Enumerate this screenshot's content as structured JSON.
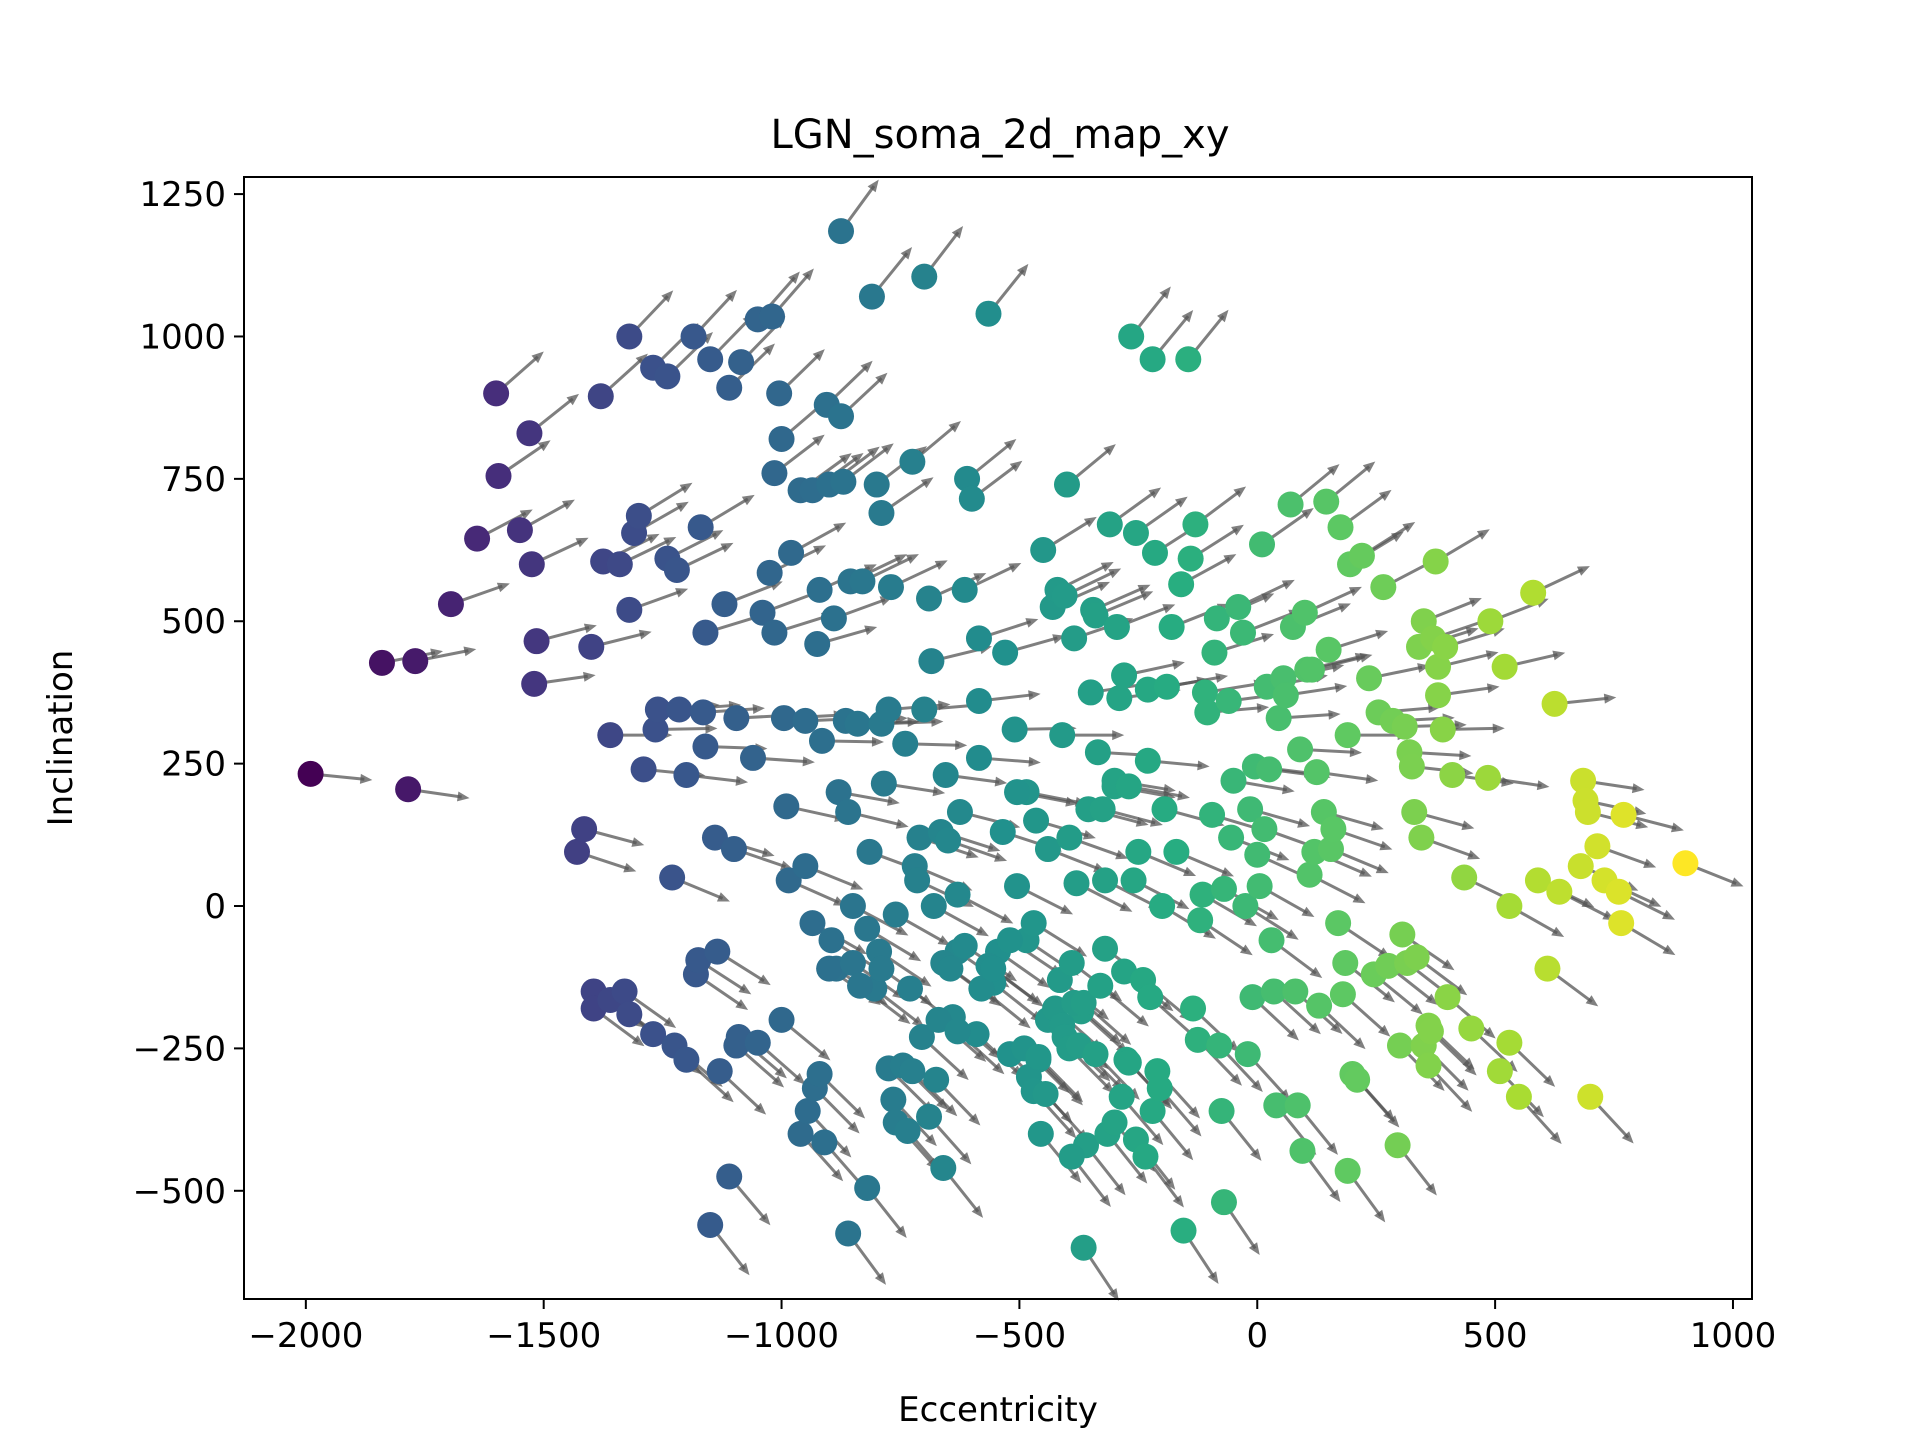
{
  "chart_data": {
    "type": "scatter",
    "title": "LGN_soma_2d_map_xy",
    "xlabel": "Eccentricity",
    "ylabel": "Inclination",
    "xlim": [
      -2130,
      1040
    ],
    "ylim": [
      -690,
      1280
    ],
    "xticks": [
      -2000,
      -1500,
      -1000,
      -500,
      0,
      500,
      1000
    ],
    "yticks": [
      -500,
      -250,
      0,
      250,
      500,
      750,
      1000,
      1250
    ],
    "xtick_labels": [
      "−2000",
      "−1500",
      "−1000",
      "−500",
      "0",
      "500",
      "1000"
    ],
    "ytick_labels": [
      "−500",
      "−250",
      "0",
      "250",
      "500",
      "750",
      "1000",
      "1250"
    ],
    "colormap": "viridis",
    "color_by": "x",
    "marker_color_range": [
      "#440154",
      "#fde725"
    ],
    "arrow_color": "#555555",
    "grid": false,
    "points": [
      [
        -1990,
        232
      ],
      [
        -1785,
        205
      ],
      [
        -1840,
        427
      ],
      [
        -1770,
        430
      ],
      [
        -1695,
        530
      ],
      [
        -1640,
        645
      ],
      [
        -1595,
        755
      ],
      [
        -1600,
        900
      ],
      [
        -1550,
        660
      ],
      [
        -1530,
        830
      ],
      [
        -1525,
        600
      ],
      [
        -1515,
        465
      ],
      [
        -1520,
        390
      ],
      [
        -1430,
        95
      ],
      [
        -1415,
        135
      ],
      [
        -1400,
        455
      ],
      [
        -1380,
        895
      ],
      [
        -1375,
        605
      ],
      [
        -1360,
        300
      ],
      [
        -1340,
        600
      ],
      [
        -1320,
        520
      ],
      [
        -1320,
        1000
      ],
      [
        -1310,
        655
      ],
      [
        -1300,
        685
      ],
      [
        -1290,
        240
      ],
      [
        -1270,
        945
      ],
      [
        -1265,
        310
      ],
      [
        -1260,
        345
      ],
      [
        -1240,
        610
      ],
      [
        -1240,
        930
      ],
      [
        -1230,
        50
      ],
      [
        -1220,
        590
      ],
      [
        -1215,
        345
      ],
      [
        -1200,
        230
      ],
      [
        -1185,
        1000
      ],
      [
        -1170,
        665
      ],
      [
        -1165,
        340
      ],
      [
        -1160,
        480
      ],
      [
        -1160,
        280
      ],
      [
        -1150,
        960
      ],
      [
        -1140,
        120
      ],
      [
        -1120,
        530
      ],
      [
        -1110,
        910
      ],
      [
        -1100,
        100
      ],
      [
        -1095,
        -245
      ],
      [
        -1095,
        330
      ],
      [
        -1085,
        955
      ],
      [
        -1060,
        260
      ],
      [
        -1050,
        1030
      ],
      [
        -1040,
        515
      ],
      [
        -1025,
        585
      ],
      [
        -1020,
        1035
      ],
      [
        -1015,
        760
      ],
      [
        -1015,
        480
      ],
      [
        -1005,
        900
      ],
      [
        -1000,
        820
      ],
      [
        -995,
        330
      ],
      [
        -990,
        175
      ],
      [
        -985,
        45
      ],
      [
        -980,
        620
      ],
      [
        -960,
        730
      ],
      [
        -950,
        325
      ],
      [
        -950,
        70
      ],
      [
        -935,
        730
      ],
      [
        -935,
        -30
      ],
      [
        -925,
        460
      ],
      [
        -920,
        555
      ],
      [
        -915,
        290
      ],
      [
        -910,
        -415
      ],
      [
        -905,
        880
      ],
      [
        -900,
        740
      ],
      [
        -895,
        -60
      ],
      [
        -890,
        505
      ],
      [
        -885,
        -110
      ],
      [
        -880,
        200
      ],
      [
        -875,
        860
      ],
      [
        -870,
        745
      ],
      [
        -865,
        325
      ],
      [
        -860,
        165
      ],
      [
        -855,
        570
      ],
      [
        -850,
        0
      ],
      [
        -840,
        320
      ],
      [
        -830,
        570
      ],
      [
        -820,
        -495
      ],
      [
        -815,
        95
      ],
      [
        -810,
        1070
      ],
      [
        -805,
        -145
      ],
      [
        -800,
        740
      ],
      [
        -790,
        690
      ],
      [
        -790,
        320
      ],
      [
        -785,
        215
      ],
      [
        -775,
        345
      ],
      [
        -770,
        560
      ],
      [
        -760,
        -15
      ],
      [
        -740,
        285
      ],
      [
        -730,
        -145
      ],
      [
        -725,
        780
      ],
      [
        -720,
        70
      ],
      [
        -715,
        45
      ],
      [
        -710,
        120
      ],
      [
        -700,
        1105
      ],
      [
        -690,
        540
      ],
      [
        -685,
        430
      ],
      [
        -680,
        0
      ],
      [
        -675,
        -305
      ],
      [
        -665,
        130
      ],
      [
        -660,
        -460
      ],
      [
        -655,
        230
      ],
      [
        -650,
        115
      ],
      [
        -640,
        -195
      ],
      [
        -630,
        20
      ],
      [
        -625,
        165
      ],
      [
        -615,
        555
      ],
      [
        -610,
        750
      ],
      [
        -600,
        715
      ],
      [
        -590,
        -225
      ],
      [
        -585,
        470
      ],
      [
        -585,
        260
      ],
      [
        -585,
        360
      ],
      [
        -565,
        1040
      ],
      [
        -555,
        -135
      ],
      [
        -545,
        -80
      ],
      [
        -535,
        130
      ],
      [
        -530,
        445
      ],
      [
        -520,
        -260
      ],
      [
        -510,
        310
      ],
      [
        -505,
        35
      ],
      [
        -485,
        200
      ],
      [
        -485,
        -60
      ],
      [
        -470,
        -30
      ],
      [
        -465,
        150
      ],
      [
        -460,
        -270
      ],
      [
        -455,
        -400
      ],
      [
        -450,
        625
      ],
      [
        -440,
        100
      ],
      [
        -430,
        525
      ],
      [
        -420,
        555
      ],
      [
        -415,
        -130
      ],
      [
        -410,
        300
      ],
      [
        -405,
        545
      ],
      [
        -400,
        740
      ],
      [
        -395,
        120
      ],
      [
        -390,
        -100
      ],
      [
        -385,
        470
      ],
      [
        -380,
        40
      ],
      [
        -370,
        -185
      ],
      [
        -365,
        -600
      ],
      [
        -360,
        -420
      ],
      [
        -355,
        170
      ],
      [
        -350,
        375
      ],
      [
        -345,
        520
      ],
      [
        -340,
        510
      ],
      [
        -335,
        270
      ],
      [
        -325,
        170
      ],
      [
        -320,
        45
      ],
      [
        -320,
        -75
      ],
      [
        -310,
        670
      ],
      [
        -300,
        210
      ],
      [
        -300,
        220
      ],
      [
        -295,
        490
      ],
      [
        -290,
        365
      ],
      [
        -280,
        405
      ],
      [
        -280,
        -115
      ],
      [
        -275,
        -270
      ],
      [
        -270,
        210
      ],
      [
        -265,
        1000
      ],
      [
        -260,
        45
      ],
      [
        -255,
        655
      ],
      [
        -250,
        95
      ],
      [
        -240,
        -130
      ],
      [
        -230,
        380
      ],
      [
        -230,
        255
      ],
      [
        -225,
        -160
      ],
      [
        -220,
        960
      ],
      [
        -215,
        620
      ],
      [
        -210,
        -290
      ],
      [
        -200,
        0
      ],
      [
        -195,
        170
      ],
      [
        -190,
        385
      ],
      [
        -180,
        490
      ],
      [
        -170,
        95
      ],
      [
        -160,
        565
      ],
      [
        -155,
        -570
      ],
      [
        -145,
        960
      ],
      [
        -140,
        610
      ],
      [
        -135,
        -180
      ],
      [
        -130,
        670
      ],
      [
        -125,
        -235
      ],
      [
        -120,
        -25
      ],
      [
        -115,
        20
      ],
      [
        -110,
        375
      ],
      [
        -105,
        340
      ],
      [
        -95,
        160
      ],
      [
        -90,
        445
      ],
      [
        -85,
        505
      ],
      [
        -80,
        -245
      ],
      [
        -75,
        -360
      ],
      [
        -70,
        30
      ],
      [
        -70,
        -520
      ],
      [
        -60,
        360
      ],
      [
        -55,
        120
      ],
      [
        -50,
        220
      ],
      [
        -40,
        525
      ],
      [
        -30,
        480
      ],
      [
        -25,
        0
      ],
      [
        -20,
        -260
      ],
      [
        -15,
        170
      ],
      [
        -10,
        -160
      ],
      [
        -5,
        245
      ],
      [
        0,
        90
      ],
      [
        5,
        35
      ],
      [
        10,
        635
      ],
      [
        15,
        135
      ],
      [
        20,
        385
      ],
      [
        25,
        240
      ],
      [
        30,
        -60
      ],
      [
        35,
        -150
      ],
      [
        40,
        -350
      ],
      [
        45,
        330
      ],
      [
        55,
        400
      ],
      [
        60,
        370
      ],
      [
        70,
        705
      ],
      [
        75,
        490
      ],
      [
        80,
        -150
      ],
      [
        85,
        -350
      ],
      [
        90,
        275
      ],
      [
        95,
        -430
      ],
      [
        100,
        515
      ],
      [
        105,
        415
      ],
      [
        110,
        55
      ],
      [
        115,
        415
      ],
      [
        120,
        95
      ],
      [
        125,
        235
      ],
      [
        130,
        -175
      ],
      [
        140,
        165
      ],
      [
        145,
        710
      ],
      [
        150,
        450
      ],
      [
        155,
        100
      ],
      [
        160,
        135
      ],
      [
        170,
        -30
      ],
      [
        175,
        665
      ],
      [
        180,
        -155
      ],
      [
        185,
        -100
      ],
      [
        190,
        -465
      ],
      [
        190,
        300
      ],
      [
        195,
        600
      ],
      [
        200,
        -295
      ],
      [
        210,
        -305
      ],
      [
        220,
        615
      ],
      [
        235,
        400
      ],
      [
        245,
        -120
      ],
      [
        255,
        340
      ],
      [
        265,
        560
      ],
      [
        275,
        -105
      ],
      [
        285,
        325
      ],
      [
        295,
        -420
      ],
      [
        300,
        -245
      ],
      [
        305,
        -50
      ],
      [
        310,
        315
      ],
      [
        315,
        -100
      ],
      [
        320,
        270
      ],
      [
        325,
        245
      ],
      [
        330,
        165
      ],
      [
        335,
        -90
      ],
      [
        340,
        455
      ],
      [
        345,
        120
      ],
      [
        350,
        500
      ],
      [
        350,
        -245
      ],
      [
        360,
        -280
      ],
      [
        360,
        -210
      ],
      [
        365,
        -220
      ],
      [
        370,
        470
      ],
      [
        375,
        605
      ],
      [
        380,
        420
      ],
      [
        380,
        370
      ],
      [
        390,
        310
      ],
      [
        395,
        455
      ],
      [
        400,
        -160
      ],
      [
        410,
        230
      ],
      [
        435,
        50
      ],
      [
        450,
        -215
      ],
      [
        485,
        225
      ],
      [
        490,
        500
      ],
      [
        510,
        -290
      ],
      [
        520,
        420
      ],
      [
        530,
        -240
      ],
      [
        530,
        0
      ],
      [
        550,
        -335
      ],
      [
        580,
        550
      ],
      [
        590,
        45
      ],
      [
        610,
        -110
      ],
      [
        625,
        355
      ],
      [
        635,
        25
      ],
      [
        680,
        70
      ],
      [
        685,
        220
      ],
      [
        690,
        185
      ],
      [
        695,
        165
      ],
      [
        700,
        -335
      ],
      [
        715,
        105
      ],
      [
        730,
        45
      ],
      [
        760,
        25
      ],
      [
        765,
        -30
      ],
      [
        770,
        160
      ],
      [
        900,
        75
      ],
      [
        -875,
        1185
      ],
      [
        -630,
        -80
      ],
      [
        -700,
        345
      ],
      [
        -1180,
        -120
      ],
      [
        -1175,
        -95
      ],
      [
        -1135,
        -80
      ],
      [
        -1395,
        -150
      ],
      [
        -1395,
        -180
      ],
      [
        -1360,
        -165
      ],
      [
        -1330,
        -150
      ],
      [
        -1320,
        -190
      ],
      [
        -1270,
        -225
      ],
      [
        -1225,
        -245
      ],
      [
        -1200,
        -270
      ],
      [
        -1150,
        -560
      ],
      [
        -1130,
        -290
      ],
      [
        -1110,
        -475
      ],
      [
        -1090,
        -230
      ],
      [
        -1050,
        -240
      ],
      [
        -1000,
        -200
      ],
      [
        -960,
        -400
      ],
      [
        -945,
        -360
      ],
      [
        -930,
        -320
      ],
      [
        -920,
        -295
      ],
      [
        -900,
        -110
      ],
      [
        -860,
        -575
      ],
      [
        -850,
        -100
      ],
      [
        -835,
        -140
      ],
      [
        -820,
        -40
      ],
      [
        -795,
        -80
      ],
      [
        -790,
        -110
      ],
      [
        -775,
        -285
      ],
      [
        -765,
        -340
      ],
      [
        -760,
        -380
      ],
      [
        -745,
        -280
      ],
      [
        -735,
        -395
      ],
      [
        -725,
        -290
      ],
      [
        -705,
        -230
      ],
      [
        -690,
        -370
      ],
      [
        -670,
        -200
      ],
      [
        -660,
        -100
      ],
      [
        -645,
        -110
      ],
      [
        -630,
        -220
      ],
      [
        -615,
        -70
      ],
      [
        -580,
        -145
      ],
      [
        -565,
        -105
      ],
      [
        -555,
        -110
      ],
      [
        -520,
        -60
      ],
      [
        -505,
        200
      ],
      [
        -490,
        -250
      ],
      [
        -480,
        -300
      ],
      [
        -470,
        -325
      ],
      [
        -460,
        -265
      ],
      [
        -445,
        -330
      ],
      [
        -440,
        -200
      ],
      [
        -425,
        -180
      ],
      [
        -410,
        -210
      ],
      [
        -405,
        -230
      ],
      [
        -395,
        -250
      ],
      [
        -390,
        -440
      ],
      [
        -385,
        -170
      ],
      [
        -375,
        -245
      ],
      [
        -365,
        -170
      ],
      [
        -340,
        -260
      ],
      [
        -330,
        -140
      ],
      [
        -315,
        -400
      ],
      [
        -300,
        -380
      ],
      [
        -285,
        -335
      ],
      [
        -270,
        -275
      ],
      [
        -255,
        -410
      ],
      [
        -235,
        -440
      ],
      [
        -220,
        -360
      ],
      [
        -205,
        -320
      ]
    ]
  }
}
